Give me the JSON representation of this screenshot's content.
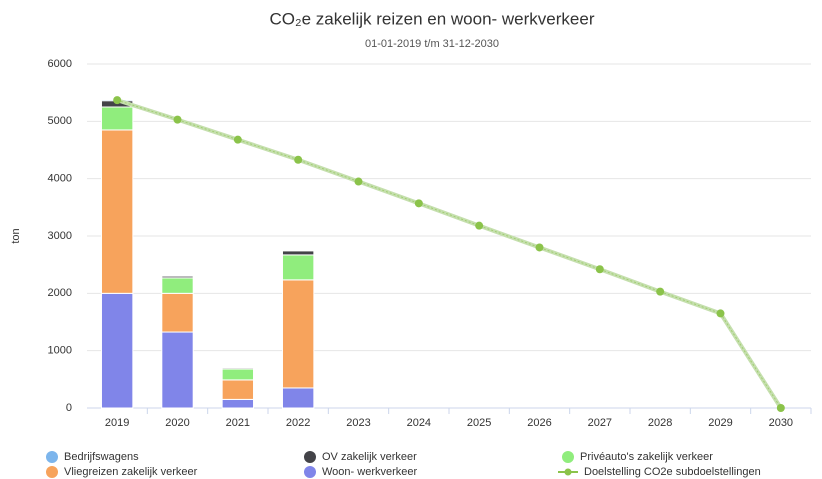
{
  "chart_data": {
    "type": "bar",
    "title": "CO₂e zakelijk reizen en woon- werkverkeer",
    "subtitle": "01-01-2019 t/m 31-12-2030",
    "y_label": "ton",
    "categories": [
      "2019",
      "2020",
      "2021",
      "2022",
      "2023",
      "2024",
      "2025",
      "2026",
      "2027",
      "2028",
      "2029",
      "2030"
    ],
    "ylim": [
      0,
      6000
    ],
    "yticks": [
      0,
      1000,
      2000,
      3000,
      4000,
      5000,
      6000
    ],
    "grid": true,
    "stacked": true,
    "legend": "bottom",
    "series": [
      {
        "name": "Bedrijfswagens",
        "type": "bar",
        "color": "#7cb5ec",
        "values": [
          20,
          0,
          0,
          0,
          null,
          null,
          null,
          null,
          null,
          null,
          null,
          null
        ]
      },
      {
        "name": "OV zakelijk verkeer",
        "type": "bar",
        "color": "#434348",
        "values": [
          110,
          30,
          20,
          70,
          null,
          null,
          null,
          null,
          null,
          null,
          null,
          null
        ]
      },
      {
        "name": "Privéauto's zakelijk verkeer",
        "type": "bar",
        "color": "#90ed7d",
        "values": [
          400,
          270,
          190,
          435,
          null,
          null,
          null,
          null,
          null,
          null,
          null,
          null
        ]
      },
      {
        "name": "Vliegreizen zakelijk verkeer",
        "type": "bar",
        "color": "#f7a35c",
        "values": [
          2850,
          675,
          340,
          1885,
          null,
          null,
          null,
          null,
          null,
          null,
          null,
          null
        ]
      },
      {
        "name": "Woon- werkverkeer",
        "type": "bar",
        "color": "#8085e9",
        "values": [
          2000,
          1325,
          150,
          350,
          null,
          null,
          null,
          null,
          null,
          null,
          null,
          null
        ]
      },
      {
        "name": "Doelstelling CO2e subdoelstellingen",
        "type": "line",
        "color": "#8bc34a",
        "values": [
          5370,
          5030,
          4680,
          4330,
          3950,
          3570,
          3180,
          2800,
          2420,
          2030,
          1650,
          0
        ]
      }
    ]
  }
}
